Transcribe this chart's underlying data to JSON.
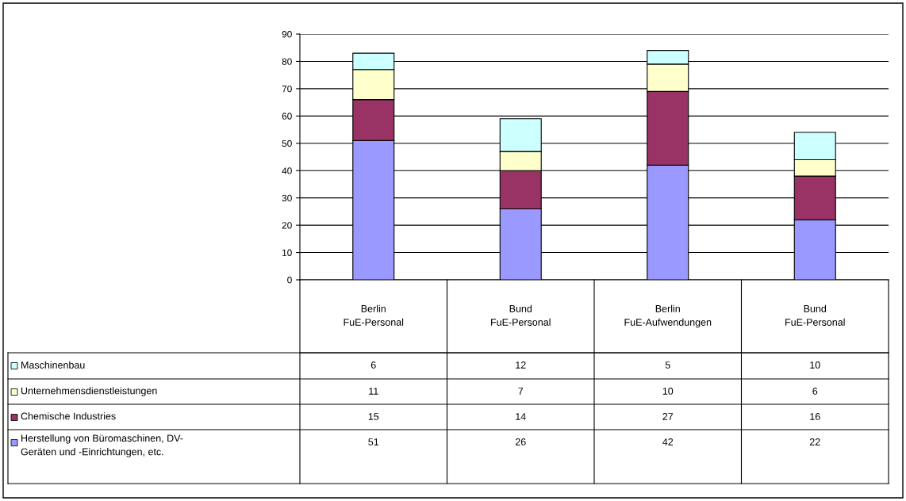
{
  "chart_data": {
    "type": "bar",
    "stacked": true,
    "categories": [
      "Berlin\nFuE-Personal",
      "Bund\nFuE-Personal",
      "Berlin\nFuE-Aufwendungen",
      "Bund\nFuE-Personal"
    ],
    "series": [
      {
        "name": "Herstellung von Büromaschinen, DV-\nGeräten und -Einrichtungen, etc.",
        "color": "#9999ff",
        "values": [
          51,
          26,
          42,
          22
        ]
      },
      {
        "name": "Chemische Industries",
        "color": "#993366",
        "values": [
          15,
          14,
          27,
          16
        ]
      },
      {
        "name": "Unternehmensdienstleistungen",
        "color": "#ffffcc",
        "values": [
          11,
          7,
          10,
          6
        ]
      },
      {
        "name": "Maschinenbau",
        "color": "#ccffff",
        "values": [
          6,
          12,
          5,
          10
        ]
      }
    ],
    "ylim": [
      0,
      90
    ],
    "yticks": [
      0,
      10,
      20,
      30,
      40,
      50,
      60,
      70,
      80,
      90
    ],
    "grid": "y",
    "data_labels": true,
    "legend": "bottom left"
  }
}
